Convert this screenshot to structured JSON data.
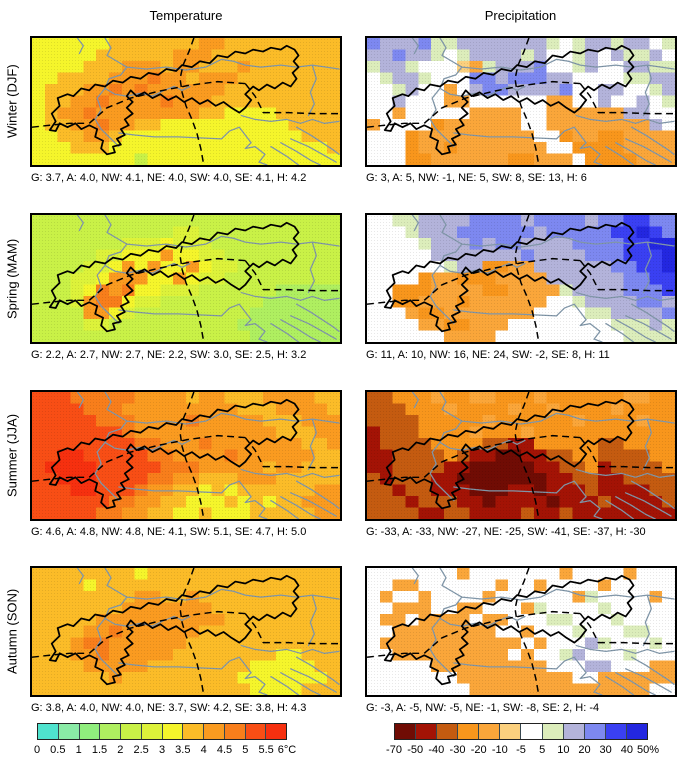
{
  "figure": {
    "col_titles": [
      "Temperature",
      "Precipitation"
    ],
    "regions": [
      "G",
      "A",
      "NW",
      "NE",
      "SW",
      "SE",
      "H"
    ],
    "rows": [
      {
        "label": "Winter (DJF)",
        "temp_caption": "G: 3.7, A: 4.0, NW: 4.1, NE: 4.0, SW: 4.0, SE: 4.1, H: 4.2",
        "precip_caption": "G: 3, A: 5, NW: -1, NE: 5, SW: 8, SE: 13, H: 6",
        "temp_values": [
          3.7,
          4.0,
          4.1,
          4.0,
          4.0,
          4.1,
          4.2
        ],
        "precip_values": [
          3,
          5,
          -1,
          5,
          8,
          13,
          6
        ]
      },
      {
        "label": "Spring (MAM)",
        "temp_caption": "G: 2.2, A: 2.7, NW: 2.7, NE: 2.2, SW: 3.0, SE: 2.5, H: 3.2",
        "precip_caption": "G: 11, A: 10, NW: 16, NE: 24, SW: -2, SE: 8, H: 11",
        "temp_values": [
          2.2,
          2.7,
          2.7,
          2.2,
          3.0,
          2.5,
          3.2
        ],
        "precip_values": [
          11,
          10,
          16,
          24,
          -2,
          8,
          11
        ]
      },
      {
        "label": "Summer (JJA)",
        "temp_caption": "G: 4.6, A: 4.8, NW: 4.8, NE: 4.1, SW: 5.1, SE: 4.7, H: 5.0",
        "precip_caption": "G: -33, A: -33, NW: -27, NE: -25, SW: -41, SE: -37, H: -30",
        "temp_values": [
          4.6,
          4.8,
          4.8,
          4.1,
          5.1,
          4.7,
          5.0
        ],
        "precip_values": [
          -33,
          -33,
          -27,
          -25,
          -41,
          -37,
          -30
        ]
      },
      {
        "label": "Autumn (SON)",
        "temp_caption": "G: 3.8, A: 4.0, NW: 4.0, NE: 3.7, SW: 4.2, SE: 3.8, H: 4.3",
        "precip_caption": "G: -3, A: -5, NW: -5, NE: -1, SW: -8, SE: 2, H: -4",
        "temp_values": [
          3.8,
          4.0,
          4.0,
          3.7,
          4.2,
          3.8,
          4.3
        ],
        "precip_values": [
          -3,
          -5,
          -5,
          -1,
          -8,
          2,
          -4
        ]
      }
    ],
    "colorbars": {
      "temperature": {
        "unit": "°C",
        "ticks": [
          "0",
          "0.5",
          "1",
          "1.5",
          "2",
          "2.5",
          "3",
          "3.5",
          "4",
          "4.5",
          "5",
          "5.5",
          "6°C"
        ],
        "colors": [
          "#4FE3CE",
          "#8AEBA6",
          "#90EE7D",
          "#AFEF60",
          "#C9F147",
          "#DDF23A",
          "#F5F52B",
          "#FBBC28",
          "#FA9B20",
          "#F87E1B",
          "#F84E15",
          "#F6300F"
        ]
      },
      "precipitation": {
        "unit": "%",
        "ticks": [
          "-70",
          "-50",
          "-40",
          "-30",
          "-20",
          "-10",
          "-5",
          "5",
          "10",
          "20",
          "30",
          "40",
          "50%"
        ],
        "colors": [
          "#700C04",
          "#A31305",
          "#C45B10",
          "#F8961C",
          "#FAA63A",
          "#FBD07E",
          "#FFFFFF",
          "#DCEDBB",
          "#B3B3DA",
          "#7D88F0",
          "#3A40F2",
          "#2327E0"
        ]
      }
    }
  },
  "panels": {
    "temp_palette": [
      "#4FE3CE",
      "#8AEBA6",
      "#90EE7D",
      "#AFEF60",
      "#C9F147",
      "#DDF23A",
      "#F5F52B",
      "#FBBC28",
      "#FA9B20",
      "#F87E1B",
      "#F84E15",
      "#F6300F"
    ],
    "precip_palette": [
      "#700C04",
      "#A31305",
      "#C45B10",
      "#F8961C",
      "#FAA63A",
      "#FBD07E",
      "#FFFFFF",
      "#DCEDBB",
      "#B3B3DA",
      "#7D88F0",
      "#3A40F2",
      "#2327E0"
    ],
    "grids": {
      "winter_temp": [
        "666666777777788777777777",
        "666667777778887777777777",
        "666677788878877787777777",
        "667777888988788877777777",
        "677788989888888777777777",
        "677889888898887777777777",
        "678898888888877666677777",
        "677889887766666666667777",
        "667788766666666666666777",
        "666777666666666666666667",
        "666666664666666666666666"
      ],
      "winter_precip": [
        "988897788888887678878867",
        "889887678888786678687786",
        "788766654788896678668877",
        "678876669989998866667788",
        "667866468998888966886678",
        "668666446666664466866867",
        "664666664444664444448866",
        "466663444444664444444486",
        "666344444444466344334444",
        "666344344444446633334444",
        "666334444443344463333444"
      ],
      "spring_temp": [
        "444444444444444444444444",
        "444444444445544444444444",
        "444444455565554444444444",
        "444445566686655444444444",
        "444455686866865544444444",
        "444556888668655444444444",
        "444569896655544444433333",
        "444589965544444444333333",
        "444488654444444443333333",
        "444455444444444433333333",
        "444444444444444443333333"
      ],
      "spring_precip": [
        "66778888999989999899aa99",
        "6667888999999899999aaba9",
        "66667888989988889999aabb",
        "66666888888898888999aaab",
        "666666788334488888899aab",
        "6666344333444488888899aa",
        "66333444433444478888999a",
        "663344434444446678888998",
        "666433444444466667788889",
        "666644334446666666677787",
        "666666444466666666667777"
      ],
      "summer_temp": [
        "aaa999998888788777888877",
        "aaaa99988888888877788887",
        "aaaaa9998888988888777888",
        "aaaaaaa98888888888877788",
        "aaaaaaaa9988898888888778",
        "aabbaaaaa998888988888877",
        "abbbbaaaaa99988888788777",
        "aabbbaaaa998877788877777",
        "aaabbaaa9887767677777788",
        "aaaaaa998877666767677888",
        "aaaaa9988776676667777788"
      ],
      "summer_precip": [
        "223334334433343333334433",
        "222333433334334333343333",
        "222233333433333343333433",
        "122233334333433333333333",
        "122223333221133333223333",
        "112222321100112233222233",
        "112222110000011223122223",
        "212221100000001122112222",
        "221221110001101112111122",
        "222122211011110111211112",
        "222211221111211211111111"
      ],
      "autumn_temp": [
        "777777776777777777777777",
        "777767777777777777777777",
        "777777778877877777777777",
        "777777788888887777777777",
        "777778888888888777777777",
        "777788988888877777777777",
        "777899888888777777777777",
        "777889888887777777766777",
        "777788888777777776666677",
        "777777877777777766666667",
        "777777777777777776666777"
      ],
      "autumn_precip": [
        "666666646666666466664666",
        "664466666646646666466666",
        "646646666466666647666646",
        "664446644666476666766666",
        "644644446446667766676666",
        "664444444466466676667766",
        "644444444444646668766676",
        "664444444446466786667666",
        "666664444444446668866644",
        "666666644444444466444444",
        "666666664444444444444466"
      ]
    }
  }
}
